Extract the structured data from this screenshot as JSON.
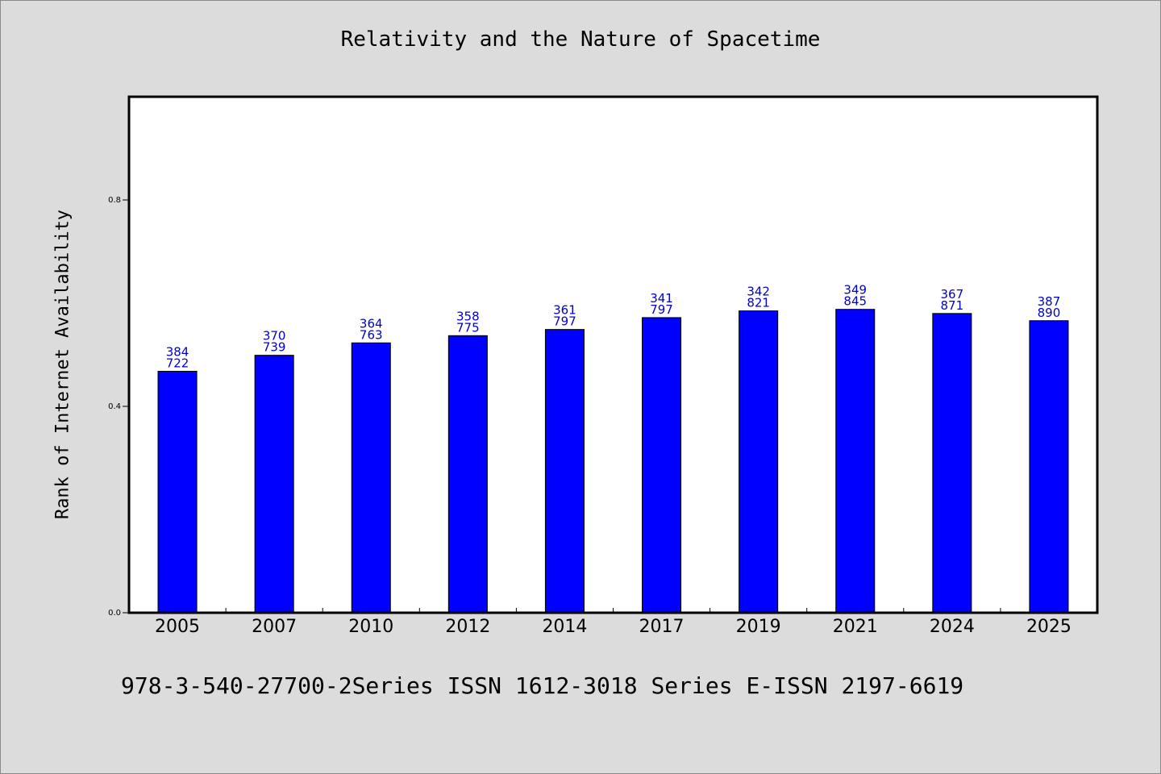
{
  "colors": {
    "background": "#dcdcdc",
    "plot_background": "#ffffff",
    "bar_fill": "#0000ff",
    "bar_stroke": "#000000",
    "data_label": "#0000cc"
  },
  "chart_data": {
    "type": "bar",
    "title": "Relativity and the Nature of Spacetime",
    "xlabel": "",
    "ylabel": "Rank of Internet Availability",
    "ylim": [
      0,
      1.0
    ],
    "yticks": [
      0.0,
      0.4,
      0.8
    ],
    "ytick_labels": [
      "0.0",
      "0.4",
      "0.8"
    ],
    "grid": false,
    "categories": [
      "2005",
      "2007",
      "2010",
      "2012",
      "2014",
      "2017",
      "2019",
      "2021",
      "2024",
      "2025"
    ],
    "values": [
      0.468,
      0.499,
      0.523,
      0.537,
      0.549,
      0.572,
      0.585,
      0.588,
      0.58,
      0.566
    ],
    "data_labels": [
      [
        "384",
        "722"
      ],
      [
        "370",
        "739"
      ],
      [
        "364",
        "763"
      ],
      [
        "358",
        "775"
      ],
      [
        "361",
        "797"
      ],
      [
        "341",
        "797"
      ],
      [
        "342",
        "821"
      ],
      [
        "349",
        "845"
      ],
      [
        "367",
        "871"
      ],
      [
        "387",
        "890"
      ]
    ]
  },
  "footer": {
    "text": "978-3-540-27700-2Series ISSN 1612-3018 Series E-ISSN 2197-6619"
  }
}
